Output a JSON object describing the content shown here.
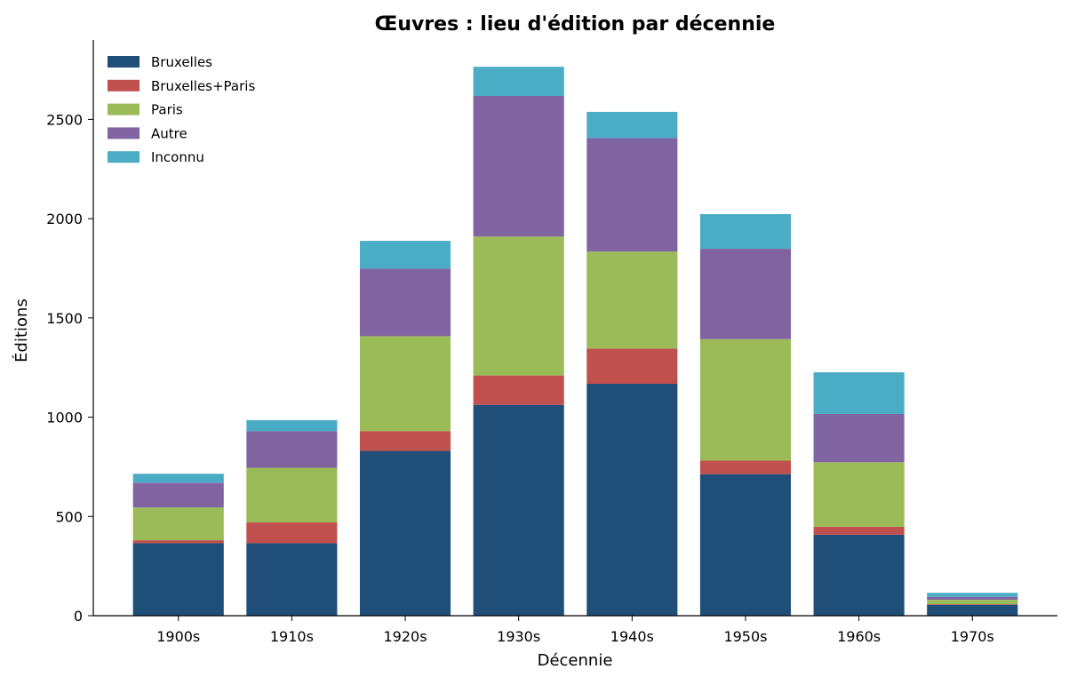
{
  "chart_data": {
    "type": "bar",
    "stacked": true,
    "title": "Œuvres : lieu d'édition par décennie",
    "xlabel": "Décennie",
    "ylabel": "Éditions",
    "categories": [
      "1900s",
      "1910s",
      "1920s",
      "1930s",
      "1940s",
      "1950s",
      "1960s",
      "1970s"
    ],
    "yticks": [
      0,
      500,
      1000,
      1500,
      2000,
      2500
    ],
    "ylim": [
      0,
      2900
    ],
    "grid": false,
    "legend_position": "top-left",
    "series": [
      {
        "name": "Bruxelles",
        "color": "#1f4e79",
        "values": [
          365,
          365,
          830,
          1062,
          1168,
          713,
          408,
          55
        ]
      },
      {
        "name": "Bruxelles+Paris",
        "color": "#c0504d",
        "values": [
          15,
          105,
          100,
          148,
          178,
          68,
          40,
          3
        ]
      },
      {
        "name": "Paris",
        "color": "#9bbb59",
        "values": [
          165,
          275,
          478,
          700,
          488,
          612,
          325,
          22
        ]
      },
      {
        "name": "Autre",
        "color": "#8064a2",
        "values": [
          125,
          185,
          340,
          708,
          572,
          455,
          243,
          15
        ]
      },
      {
        "name": "Inconnu",
        "color": "#4bacc6",
        "values": [
          45,
          55,
          140,
          147,
          132,
          175,
          210,
          20
        ]
      }
    ]
  }
}
